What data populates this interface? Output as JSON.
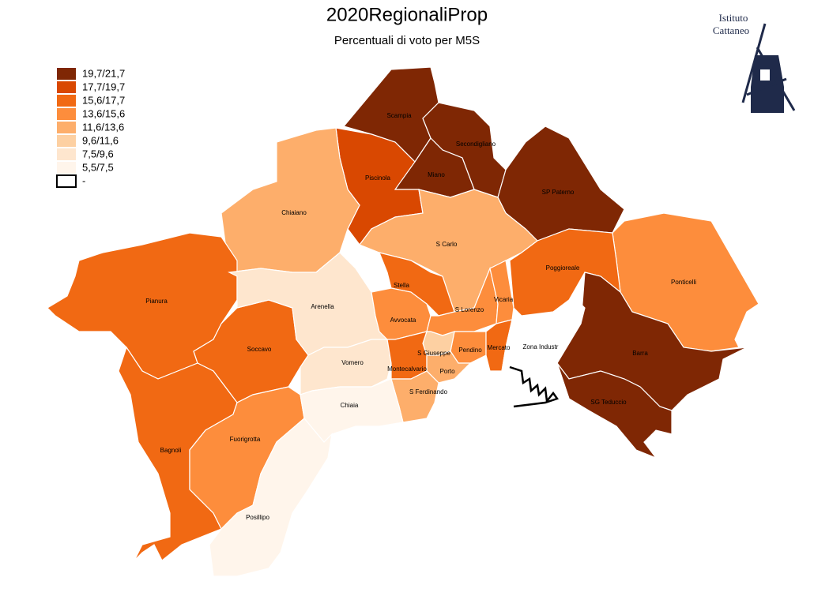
{
  "header": {
    "title": "2020RegionaliProp",
    "subtitle": "Percentuali di voto per M5S"
  },
  "logo": {
    "line1": "Istituto",
    "line2": "Cattaneo"
  },
  "legend": [
    {
      "label": "19,7/21,7",
      "color": "#7f2704"
    },
    {
      "label": "17,7/19,7",
      "color": "#d94801"
    },
    {
      "label": "15,6/17,7",
      "color": "#f16913"
    },
    {
      "label": "13,6/15,6",
      "color": "#fd8d3c"
    },
    {
      "label": "11,6/13,6",
      "color": "#fdae6b"
    },
    {
      "label": "9,6/11,6",
      "color": "#fdd0a2"
    },
    {
      "label": "7,5/9,6",
      "color": "#fee6ce"
    },
    {
      "label": "5,5/7,5",
      "color": "#fff5eb"
    },
    {
      "label": "-",
      "color": "#ffffff"
    }
  ],
  "districts": [
    {
      "name": "Scampia",
      "color": "#7f2704"
    },
    {
      "name": "Secondigliano",
      "color": "#7f2704"
    },
    {
      "name": "Miano",
      "color": "#7f2704"
    },
    {
      "name": "Piscinola",
      "color": "#d94801"
    },
    {
      "name": "SP Paterno",
      "color": "#7f2704"
    },
    {
      "name": "Chiaiano",
      "color": "#fdae6b"
    },
    {
      "name": "S Carlo",
      "color": "#fdae6b"
    },
    {
      "name": "Ponticelli",
      "color": "#fd8d3c"
    },
    {
      "name": "Poggioreale",
      "color": "#f16913"
    },
    {
      "name": "Barra",
      "color": "#7f2704"
    },
    {
      "name": "SG Teduccio",
      "color": "#7f2704"
    },
    {
      "name": "Pianura",
      "color": "#f16913"
    },
    {
      "name": "Soccavo",
      "color": "#f16913"
    },
    {
      "name": "Bagnoli",
      "color": "#f16913"
    },
    {
      "name": "Fuorigrotta",
      "color": "#fd8d3c"
    },
    {
      "name": "Arenella",
      "color": "#fee6ce"
    },
    {
      "name": "Vomero",
      "color": "#fee6ce"
    },
    {
      "name": "Stella",
      "color": "#f16913"
    },
    {
      "name": "Avvocata",
      "color": "#fd8d3c"
    },
    {
      "name": "S Lorenzo",
      "color": "#fd8d3c"
    },
    {
      "name": "Vicaria",
      "color": "#fd8d3c"
    },
    {
      "name": "Pendino",
      "color": "#fd8d3c"
    },
    {
      "name": "Mercato",
      "color": "#f16913"
    },
    {
      "name": "S Giuseppe",
      "color": "#fdd0a2"
    },
    {
      "name": "Montecalvario",
      "color": "#f16913"
    },
    {
      "name": "Porto",
      "color": "#fdae6b"
    },
    {
      "name": "S Ferdinando",
      "color": "#fdae6b"
    },
    {
      "name": "Chiaia",
      "color": "#fff5eb"
    },
    {
      "name": "Posillipo",
      "color": "#fff5eb"
    },
    {
      "name": "Zona Industr",
      "color": "#ffffff"
    }
  ]
}
